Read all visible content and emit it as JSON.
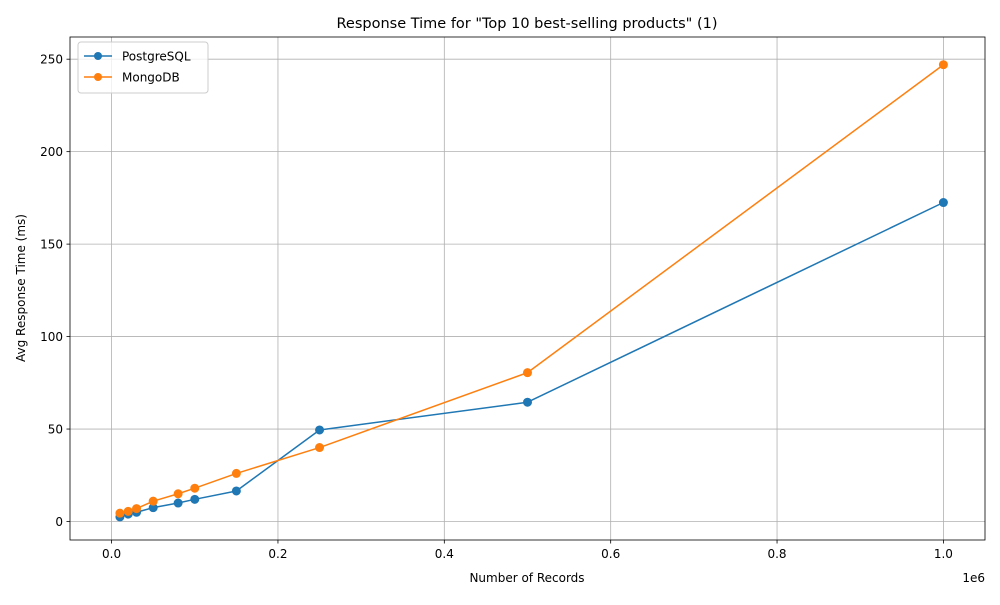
{
  "chart_data": {
    "type": "line",
    "title": "Response Time for \"Top 10 best-selling products\" (1)",
    "xlabel": "Number of Records",
    "ylabel": "Avg Response Time (ms)",
    "x_offset_label": "1e6",
    "xlim": [
      -50000,
      1050000
    ],
    "ylim": [
      -10,
      262
    ],
    "x_ticks": [
      0,
      200000,
      400000,
      600000,
      800000,
      1000000
    ],
    "x_tick_labels": [
      "0.0",
      "0.2",
      "0.4",
      "0.6",
      "0.8",
      "1.0"
    ],
    "y_ticks": [
      0,
      50,
      100,
      150,
      200,
      250
    ],
    "y_tick_labels": [
      "0",
      "50",
      "100",
      "150",
      "200",
      "250"
    ],
    "grid": true,
    "legend_position": "top-left",
    "x": [
      10000,
      20000,
      30000,
      50000,
      80000,
      100000,
      150000,
      250000,
      500000,
      1000000
    ],
    "series": [
      {
        "name": "PostgreSQL",
        "color": "#1f77b4",
        "marker": "circle",
        "values": [
          2.5,
          4.0,
          5.0,
          7.5,
          10.0,
          12.0,
          16.5,
          49.5,
          64.5,
          172.5
        ]
      },
      {
        "name": "MongoDB",
        "color": "#ff7f0e",
        "marker": "circle",
        "values": [
          4.5,
          5.5,
          7.0,
          11.0,
          15.0,
          18.0,
          26.0,
          40.0,
          80.5,
          247.0
        ]
      }
    ]
  }
}
